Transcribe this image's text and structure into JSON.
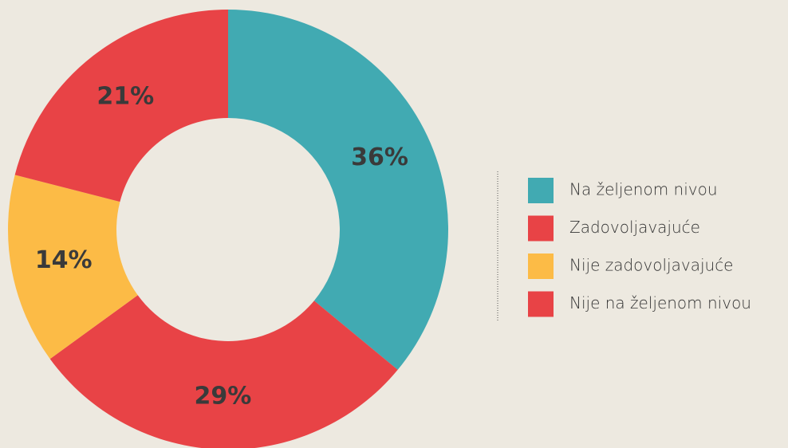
{
  "chart_data": {
    "type": "donut",
    "categories": [
      "Na željenom nivou",
      "Zadovoljavajuće",
      "Nije zadovoljavajuće",
      "Nije na željenom nivou"
    ],
    "values": [
      36,
      29,
      14,
      21
    ],
    "value_labels": [
      "36%",
      "29%",
      "14%",
      "21%"
    ],
    "colors": [
      "#41aab2",
      "#e84346",
      "#fcbb46",
      "#e84346"
    ],
    "legend": "right"
  }
}
